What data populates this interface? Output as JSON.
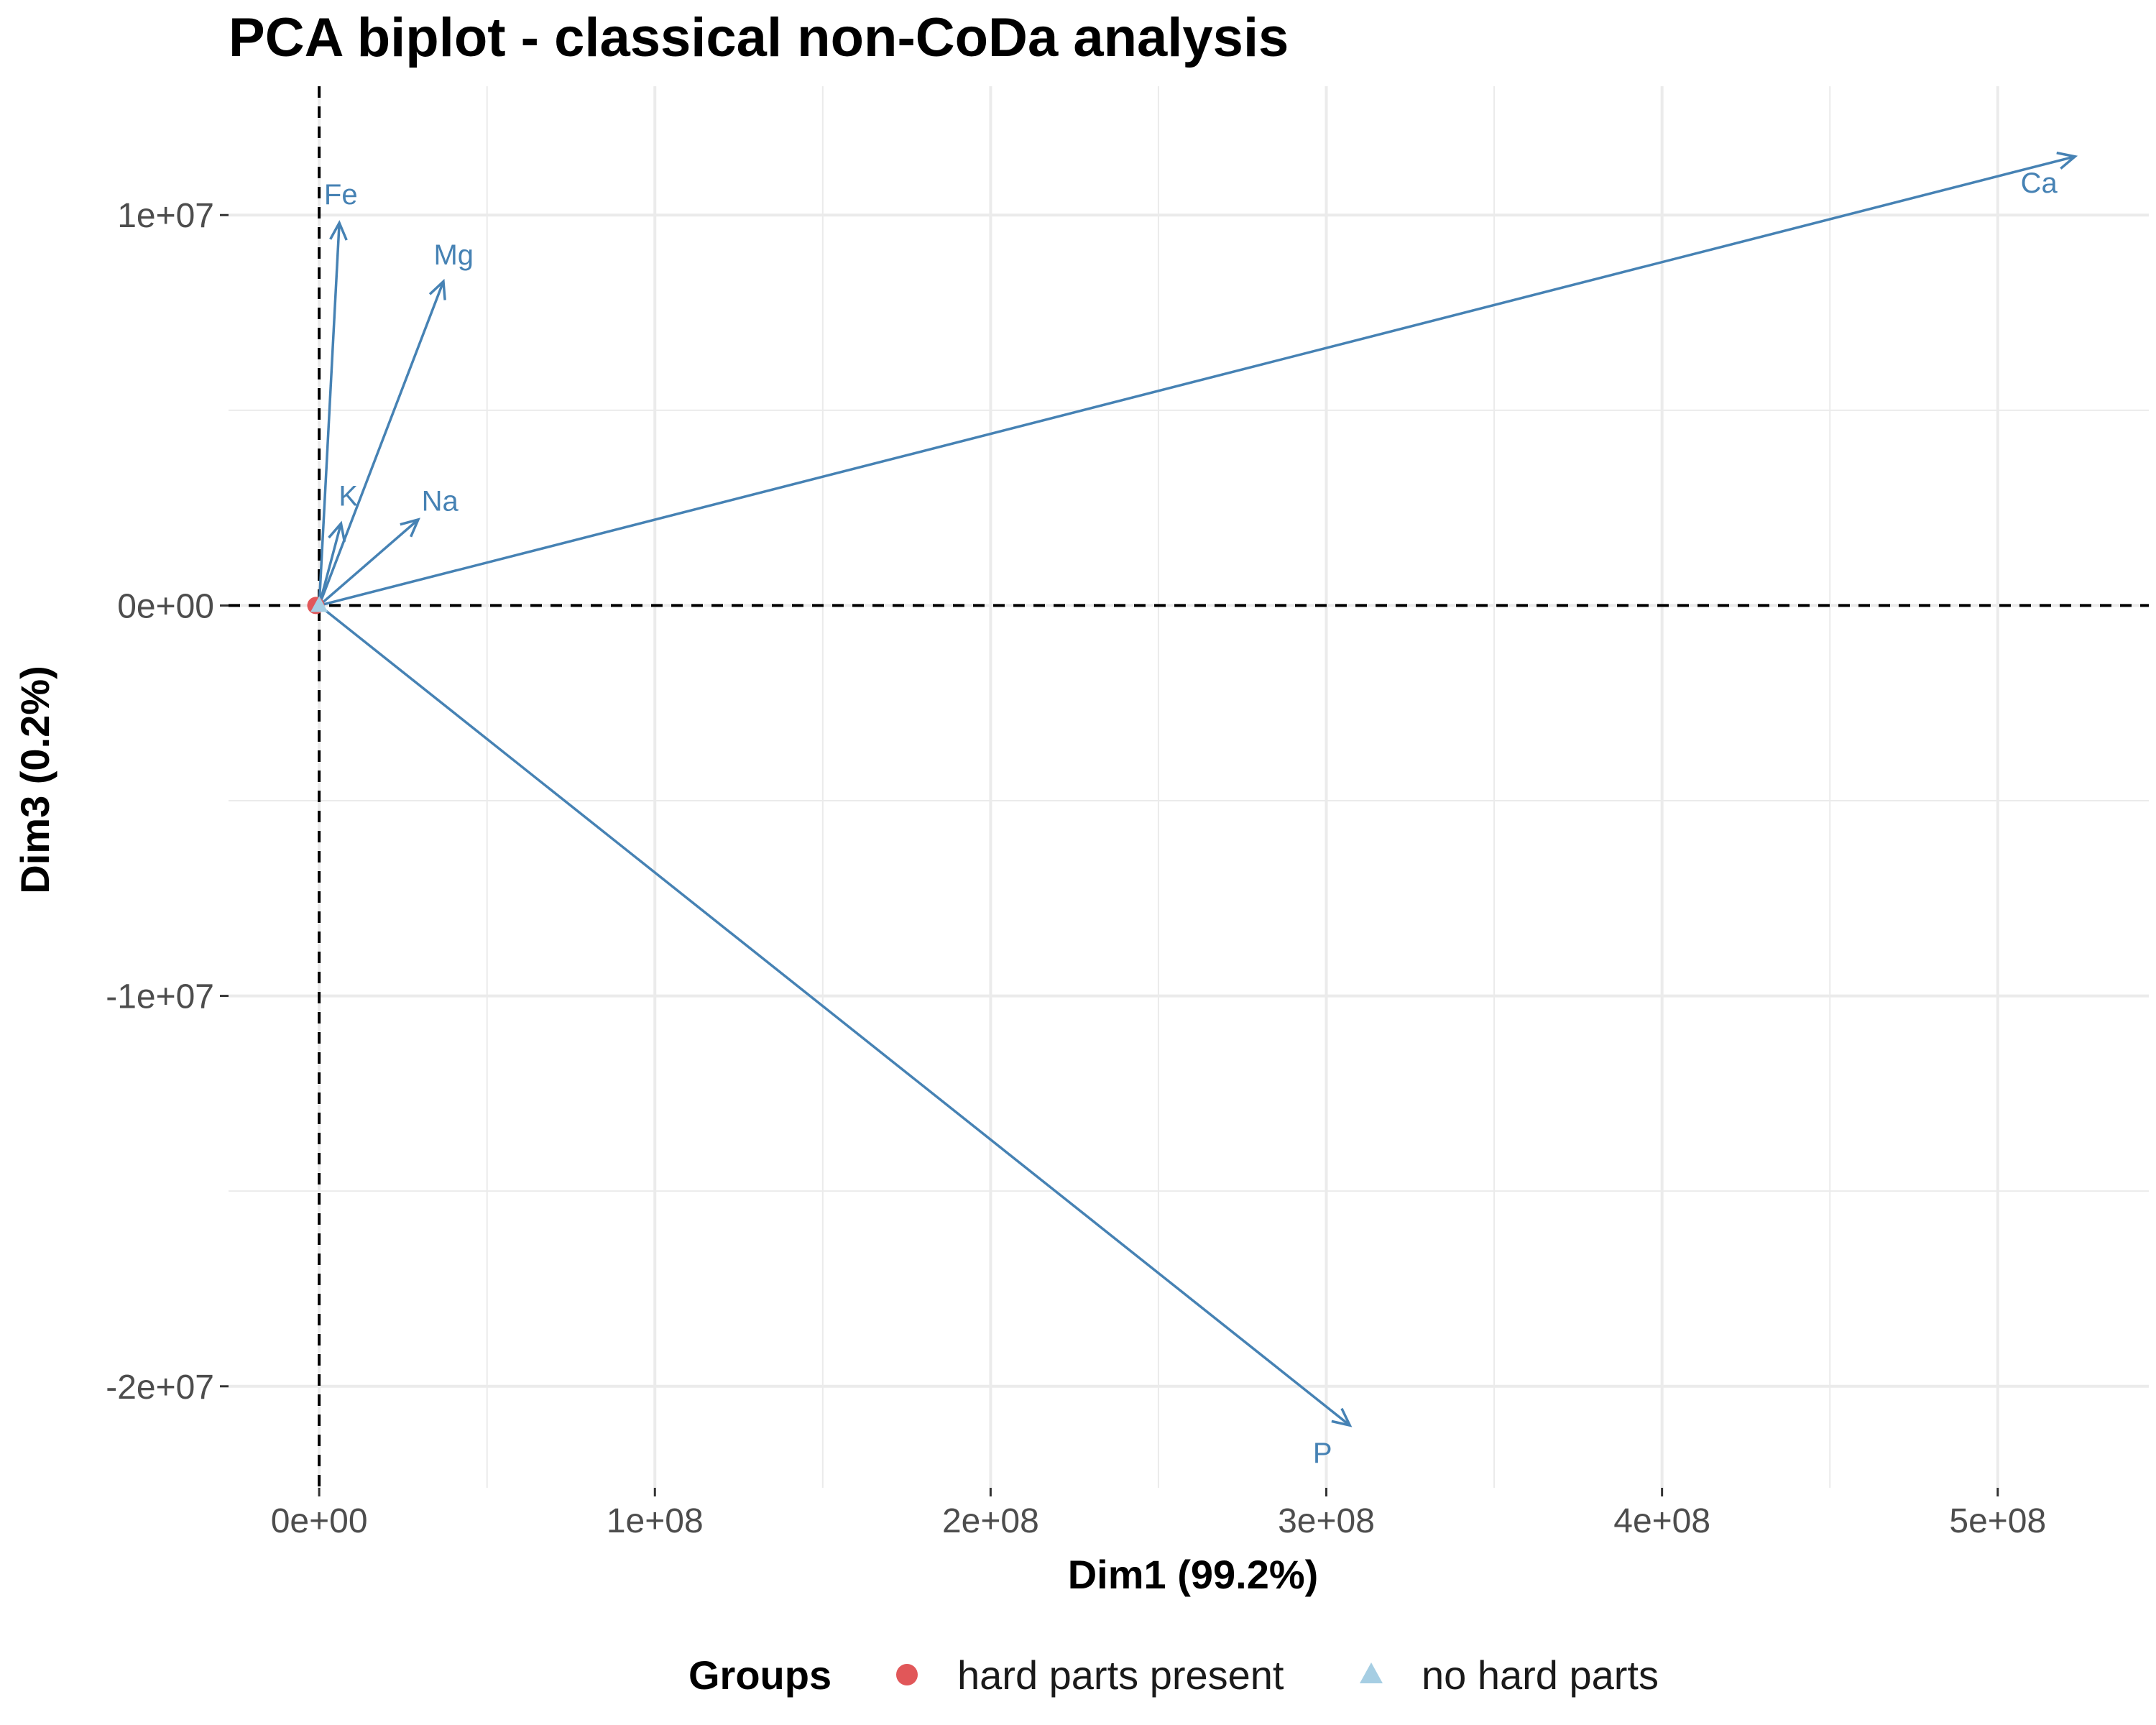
{
  "chart_data": {
    "type": "scatter",
    "title": "PCA biplot - classical non-CoDa analysis",
    "xlabel": "Dim1 (99.2%)",
    "ylabel": "Dim3 (0.2%)",
    "xlim": [
      -27000000,
      545000000
    ],
    "ylim": [
      -22600000,
      13300000
    ],
    "x_ticks": [
      {
        "value": 0,
        "label": "0e+00"
      },
      {
        "value": 100000000,
        "label": "1e+08"
      },
      {
        "value": 200000000,
        "label": "2e+08"
      },
      {
        "value": 300000000,
        "label": "3e+08"
      },
      {
        "value": 400000000,
        "label": "4e+08"
      },
      {
        "value": 500000000,
        "label": "5e+08"
      }
    ],
    "y_ticks": [
      {
        "value": 10000000,
        "label": "1e+07"
      },
      {
        "value": 0,
        "label": "0e+00"
      },
      {
        "value": -10000000,
        "label": "-1e+07"
      },
      {
        "value": -20000000,
        "label": "-2e+07"
      }
    ],
    "grid": true,
    "reference_lines": {
      "x": 0,
      "y": 0,
      "style": "dashed"
    },
    "variable_color": "#4682b4",
    "variables": [
      {
        "name": "Ca",
        "x": 523000000,
        "y": 11500000
      },
      {
        "name": "P",
        "x": 307000000,
        "y": -21000000
      },
      {
        "name": "Fe",
        "x": 6000000,
        "y": 9800000
      },
      {
        "name": "Mg",
        "x": 37000000,
        "y": 8300000
      },
      {
        "name": "Na",
        "x": 29500000,
        "y": 2200000
      },
      {
        "name": "K",
        "x": 6500000,
        "y": 2100000
      }
    ],
    "points": [
      {
        "group": "hard parts present",
        "x": -1000000,
        "y": 0
      },
      {
        "group": "no hard parts",
        "x": 0,
        "y": 0
      }
    ],
    "legend": {
      "title": "Groups",
      "position": "bottom",
      "items": [
        {
          "label": "hard parts present",
          "color": "#e15759",
          "shape": "circle"
        },
        {
          "label": "no hard parts",
          "color": "#a6cee3",
          "shape": "triangle"
        }
      ]
    }
  }
}
